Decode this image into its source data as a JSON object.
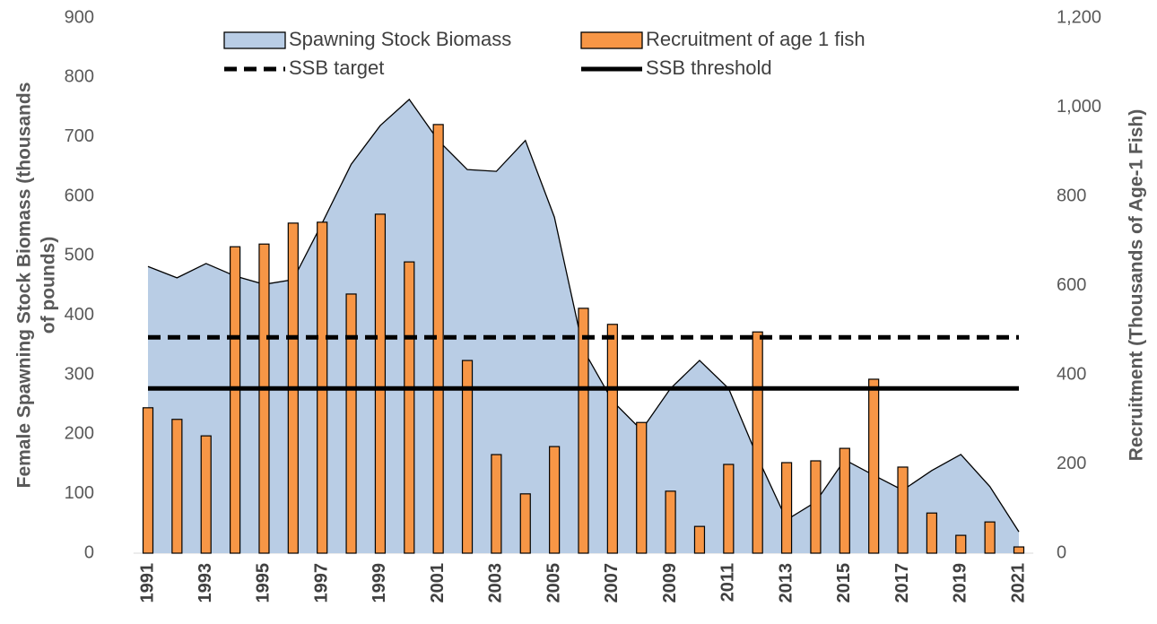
{
  "chart_data": {
    "type": "combo",
    "y_label": [
      "Female Spawning Stock Biomass (thousands",
      "of pounds)"
    ],
    "y2_label": "Recruitment (Thousands of Age-1 Fish)",
    "categories": [
      "1991",
      null,
      "1993",
      null,
      "1995",
      null,
      "1997",
      null,
      "1999",
      null,
      "2001",
      null,
      "2003",
      null,
      "2005",
      null,
      "2007",
      null,
      "2009",
      null,
      "2011",
      null,
      "2013",
      null,
      "2015",
      null,
      "2017",
      null,
      "2019",
      null,
      "2021"
    ],
    "series": [
      {
        "name": "Spawning Stock Biomass",
        "type": "area",
        "color": "#b9cde5",
        "values": [
          482,
          463,
          487,
          466,
          452,
          460,
          555,
          654,
          719,
          763,
          694,
          645,
          642,
          694,
          565,
          342,
          256,
          207,
          277,
          324,
          277,
          161,
          56,
          86,
          157,
          131,
          106,
          139,
          166,
          112,
          36
        ]
      },
      {
        "name": "Recruitment of age 1 fish",
        "type": "bar",
        "axis": "y2",
        "color": "#f79646",
        "values": [
          326,
          300,
          263,
          687,
          693,
          740,
          742,
          581,
          760,
          653,
          961,
          432,
          221,
          133,
          239,
          549,
          513,
          293,
          139,
          60,
          199,
          496,
          203,
          207,
          235,
          390,
          193,
          90,
          40,
          70,
          14
        ]
      }
    ],
    "lines": [
      {
        "name": "SSB target",
        "value": 363,
        "dash": true,
        "color": "#000000"
      },
      {
        "name": "SSB threshold",
        "value": 277,
        "dash": false,
        "color": "#000000"
      }
    ],
    "ylim": [
      0,
      900
    ],
    "yticks": [
      0,
      100,
      200,
      300,
      400,
      500,
      600,
      700,
      800,
      900
    ],
    "y2lim": [
      0,
      1200
    ],
    "y2ticks": [
      0,
      200,
      400,
      600,
      800,
      {
        "value": 1000,
        "label": "1,000"
      },
      {
        "value": 1200,
        "label": "1,200"
      }
    ],
    "grid": false
  }
}
